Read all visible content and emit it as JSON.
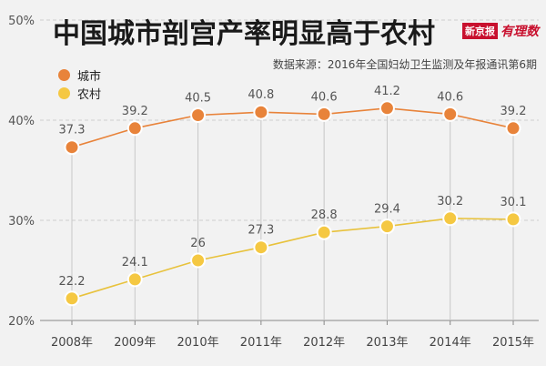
{
  "title": "中国城市剖宫产率明显高于农村",
  "brand": {
    "box": "新京报",
    "script": "有理数"
  },
  "source": "数据来源：2016年全国妇幼卫生监测及年报通讯第6期",
  "colors": {
    "city": "#e8833a",
    "rural": "#f5c842",
    "city_line": "#e8833a",
    "rural_line": "#e8c23c"
  },
  "chart_data": {
    "type": "line",
    "categories": [
      "2008年",
      "2009年",
      "2010年",
      "2011年",
      "2012年",
      "2013年",
      "2014年",
      "2015年"
    ],
    "series": [
      {
        "name": "城市",
        "values": [
          37.3,
          39.2,
          40.5,
          40.8,
          40.6,
          41.2,
          40.6,
          39.2
        ],
        "labels": [
          "37.3",
          "39.2",
          "40.5",
          "40.8",
          "40.6",
          "41.2",
          "40.6",
          "39.2"
        ]
      },
      {
        "name": "农村",
        "values": [
          22.2,
          24.1,
          26,
          27.3,
          28.8,
          29.4,
          30.2,
          30.1
        ],
        "labels": [
          "22.2",
          "24.1",
          "26",
          "27.3",
          "28.8",
          "29.4",
          "30.2",
          "30.1"
        ]
      }
    ],
    "ylim": [
      20,
      50
    ],
    "yticks": [
      20,
      30,
      40,
      50
    ],
    "ytick_labels": [
      "20%",
      "30%",
      "40%",
      "50%"
    ],
    "grid": true,
    "legend": "top-left"
  }
}
